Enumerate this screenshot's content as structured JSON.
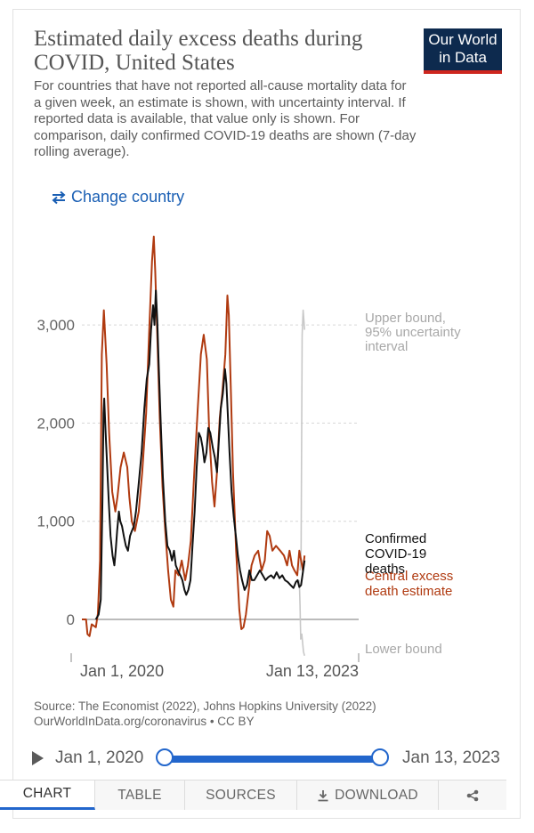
{
  "header": {
    "title": "Estimated daily excess deaths during COVID, United States",
    "subtitle": "For countries that have not reported all-cause mortality data for a given week, an estimate is shown, with uncertainty interval. If reported data is available, that value only is shown. For comparison, daily confirmed COVID-19 deaths are shown (7-day rolling average).",
    "logo_line1": "Our World",
    "logo_line2": "in Data",
    "change_country": "Change country"
  },
  "colors": {
    "central": "#b03a10",
    "confirmed": "#111111",
    "bound": "#c8c8c8",
    "accent": "#2266cc",
    "logo_bg": "#0d2a4e",
    "logo_bar": "#ce261e"
  },
  "chart_data": {
    "type": "line",
    "title": "Estimated daily excess deaths during COVID, United States",
    "x_unit": "weeks since Jan 1, 2020",
    "x_range": [
      0,
      158.6
    ],
    "ylim": [
      -400,
      4000
    ],
    "yticks": [
      0,
      1000,
      2000,
      3000
    ],
    "ytick_labels": [
      "0",
      "1,000",
      "2,000",
      "3,000"
    ],
    "xtick_labels": [
      "Jan 1, 2020",
      "Jan 13, 2023"
    ],
    "grid": true,
    "series": [
      {
        "name": "Central excess death estimate",
        "label_lines": [
          "Central excess",
          "death estimate"
        ],
        "color": "#b03a10",
        "points": [
          [
            0,
            0
          ],
          [
            2.4,
            0
          ],
          [
            3.2,
            -150
          ],
          [
            4.4,
            -170
          ],
          [
            5.6,
            -50
          ],
          [
            8,
            -80
          ],
          [
            9.2,
            60
          ],
          [
            10.4,
            600
          ],
          [
            11.4,
            2700
          ],
          [
            12.6,
            3150
          ],
          [
            14.2,
            2600
          ],
          [
            15.6,
            1900
          ],
          [
            17.4,
            1300
          ],
          [
            19.2,
            1100
          ],
          [
            20.4,
            1250
          ],
          [
            22.2,
            1550
          ],
          [
            24,
            1700
          ],
          [
            26,
            1550
          ],
          [
            27.2,
            1250
          ],
          [
            28.6,
            1000
          ],
          [
            30.4,
            900
          ],
          [
            32.6,
            1100
          ],
          [
            34.6,
            1500
          ],
          [
            36.8,
            2100
          ],
          [
            38.6,
            2950
          ],
          [
            40.2,
            3650
          ],
          [
            41.2,
            3900
          ],
          [
            42,
            3550
          ],
          [
            43.2,
            2900
          ],
          [
            44.6,
            2050
          ],
          [
            46.2,
            1350
          ],
          [
            47.8,
            900
          ],
          [
            49.4,
            500
          ],
          [
            51,
            200
          ],
          [
            52.4,
            130
          ],
          [
            53.6,
            500
          ],
          [
            55.4,
            450
          ],
          [
            57.2,
            600
          ],
          [
            59.2,
            400
          ],
          [
            60.8,
            550
          ],
          [
            62.4,
            800
          ],
          [
            64.4,
            1500
          ],
          [
            66.4,
            2150
          ],
          [
            68.2,
            2700
          ],
          [
            69.8,
            2900
          ],
          [
            71.6,
            2650
          ],
          [
            73,
            1900
          ],
          [
            74.6,
            1400
          ],
          [
            76,
            1150
          ],
          [
            77.4,
            1500
          ],
          [
            79,
            2050
          ],
          [
            80.4,
            2300
          ],
          [
            82.2,
            2700
          ],
          [
            83.4,
            3300
          ],
          [
            84.2,
            3100
          ],
          [
            85.4,
            2300
          ],
          [
            86.6,
            1500
          ],
          [
            88.4,
            700
          ],
          [
            90.2,
            100
          ],
          [
            91.4,
            -100
          ],
          [
            92.6,
            -80
          ],
          [
            94,
            50
          ],
          [
            95.6,
            300
          ],
          [
            97.2,
            550
          ],
          [
            99,
            650
          ],
          [
            101,
            700
          ],
          [
            103,
            500
          ],
          [
            104.8,
            600
          ],
          [
            106.2,
            900
          ],
          [
            107.6,
            850
          ],
          [
            109.2,
            700
          ],
          [
            111.2,
            750
          ],
          [
            113.6,
            700
          ],
          [
            115.8,
            650
          ],
          [
            117.6,
            550
          ],
          [
            119,
            700
          ],
          [
            120.4,
            550
          ],
          [
            121.8,
            500
          ],
          [
            123.4,
            450
          ],
          [
            124.6,
            700
          ],
          [
            125.6,
            600
          ],
          [
            126.6,
            500
          ],
          [
            127.6,
            650
          ]
        ]
      },
      {
        "name": "Confirmed COVID-19 deaths",
        "label_lines": [
          "Confirmed",
          "COVID-19",
          "deaths"
        ],
        "color": "#111111",
        "points": [
          [
            8,
            0
          ],
          [
            9.6,
            50
          ],
          [
            10.8,
            200
          ],
          [
            11.8,
            1200
          ],
          [
            12.4,
            2100
          ],
          [
            12.8,
            2250
          ],
          [
            13.6,
            1900
          ],
          [
            14.4,
            1600
          ],
          [
            15.4,
            1200
          ],
          [
            16.4,
            850
          ],
          [
            17.6,
            650
          ],
          [
            18.6,
            550
          ],
          [
            19.4,
            700
          ],
          [
            20.2,
            900
          ],
          [
            21.2,
            1100
          ],
          [
            22,
            1000
          ],
          [
            23,
            950
          ],
          [
            24,
            850
          ],
          [
            25.2,
            750
          ],
          [
            26.4,
            700
          ],
          [
            27.6,
            850
          ],
          [
            28.6,
            900
          ],
          [
            29.8,
            950
          ],
          [
            31,
            1100
          ],
          [
            32.4,
            1350
          ],
          [
            34.2,
            1700
          ],
          [
            35.8,
            2150
          ],
          [
            37.2,
            2450
          ],
          [
            38.6,
            2600
          ],
          [
            39.6,
            2950
          ],
          [
            40.8,
            3200
          ],
          [
            41.6,
            3000
          ],
          [
            42.4,
            3350
          ],
          [
            43.2,
            3050
          ],
          [
            44,
            2600
          ],
          [
            45.2,
            2000
          ],
          [
            46.4,
            1450
          ],
          [
            47.8,
            1000
          ],
          [
            49,
            750
          ],
          [
            50.4,
            700
          ],
          [
            51.6,
            600
          ],
          [
            52.8,
            700
          ],
          [
            53.8,
            550
          ],
          [
            55,
            500
          ],
          [
            56.4,
            450
          ],
          [
            57.6,
            400
          ],
          [
            58.8,
            300
          ],
          [
            59.8,
            250
          ],
          [
            61,
            300
          ],
          [
            62.2,
            400
          ],
          [
            63.4,
            750
          ],
          [
            64.6,
            1100
          ],
          [
            65.8,
            1550
          ],
          [
            67,
            1900
          ],
          [
            68.2,
            1850
          ],
          [
            69.2,
            1750
          ],
          [
            70.2,
            1600
          ],
          [
            71.4,
            1700
          ],
          [
            72.4,
            1950
          ],
          [
            73.6,
            1900
          ],
          [
            75,
            1750
          ],
          [
            76.2,
            1650
          ],
          [
            77.4,
            1500
          ],
          [
            78.6,
            1850
          ],
          [
            79.6,
            2150
          ],
          [
            80.8,
            2300
          ],
          [
            82,
            2550
          ],
          [
            82.8,
            2400
          ],
          [
            83.6,
            2100
          ],
          [
            84.6,
            1700
          ],
          [
            85.8,
            1300
          ],
          [
            87,
            1050
          ],
          [
            88.2,
            850
          ],
          [
            89.4,
            650
          ],
          [
            90.6,
            500
          ],
          [
            91.8,
            400
          ],
          [
            93.2,
            300
          ],
          [
            94.6,
            350
          ],
          [
            96,
            500
          ],
          [
            97.4,
            400
          ],
          [
            98.8,
            400
          ],
          [
            100.4,
            450
          ],
          [
            102,
            500
          ],
          [
            103.6,
            450
          ],
          [
            105.2,
            400
          ],
          [
            106.8,
            430
          ],
          [
            108.4,
            450
          ],
          [
            110,
            420
          ],
          [
            111.6,
            480
          ],
          [
            113.2,
            420
          ],
          [
            114.8,
            450
          ],
          [
            116.4,
            400
          ],
          [
            118,
            380
          ],
          [
            119.6,
            350
          ],
          [
            121.2,
            320
          ],
          [
            122.6,
            380
          ],
          [
            123.6,
            400
          ],
          [
            124.6,
            330
          ],
          [
            125.6,
            350
          ],
          [
            126.6,
            480
          ],
          [
            127.6,
            600
          ]
        ]
      },
      {
        "name": "Upper bound, 95% uncertainty interval",
        "label_lines": [
          "Upper bound,",
          "95% uncertainty",
          "interval"
        ],
        "color": "#c8c8c8",
        "points": [
          [
            125,
            500
          ],
          [
            125.6,
            700
          ],
          [
            126.2,
            2900
          ],
          [
            126.8,
            3150
          ],
          [
            127.6,
            2950
          ]
        ]
      },
      {
        "name": "Lower bound",
        "label_lines": [
          "Lower bound"
        ],
        "color": "#c8c8c8",
        "points": [
          [
            124.6,
            400
          ],
          [
            125,
            150
          ],
          [
            125.4,
            -200
          ],
          [
            126,
            -150
          ],
          [
            127,
            -330
          ],
          [
            127.6,
            -370
          ]
        ]
      }
    ]
  },
  "source": {
    "line1": "Source: The Economist (2022), Johns Hopkins University (2022)",
    "line2": "OurWorldInData.org/coronavirus • CC BY"
  },
  "timeline": {
    "start_label": "Jan 1, 2020",
    "end_label": "Jan 13, 2023",
    "selected_start_fraction": 0.0,
    "selected_end_fraction": 1.0
  },
  "tabs": {
    "chart": "CHART",
    "table": "TABLE",
    "sources": "SOURCES",
    "download": "DOWNLOAD"
  }
}
